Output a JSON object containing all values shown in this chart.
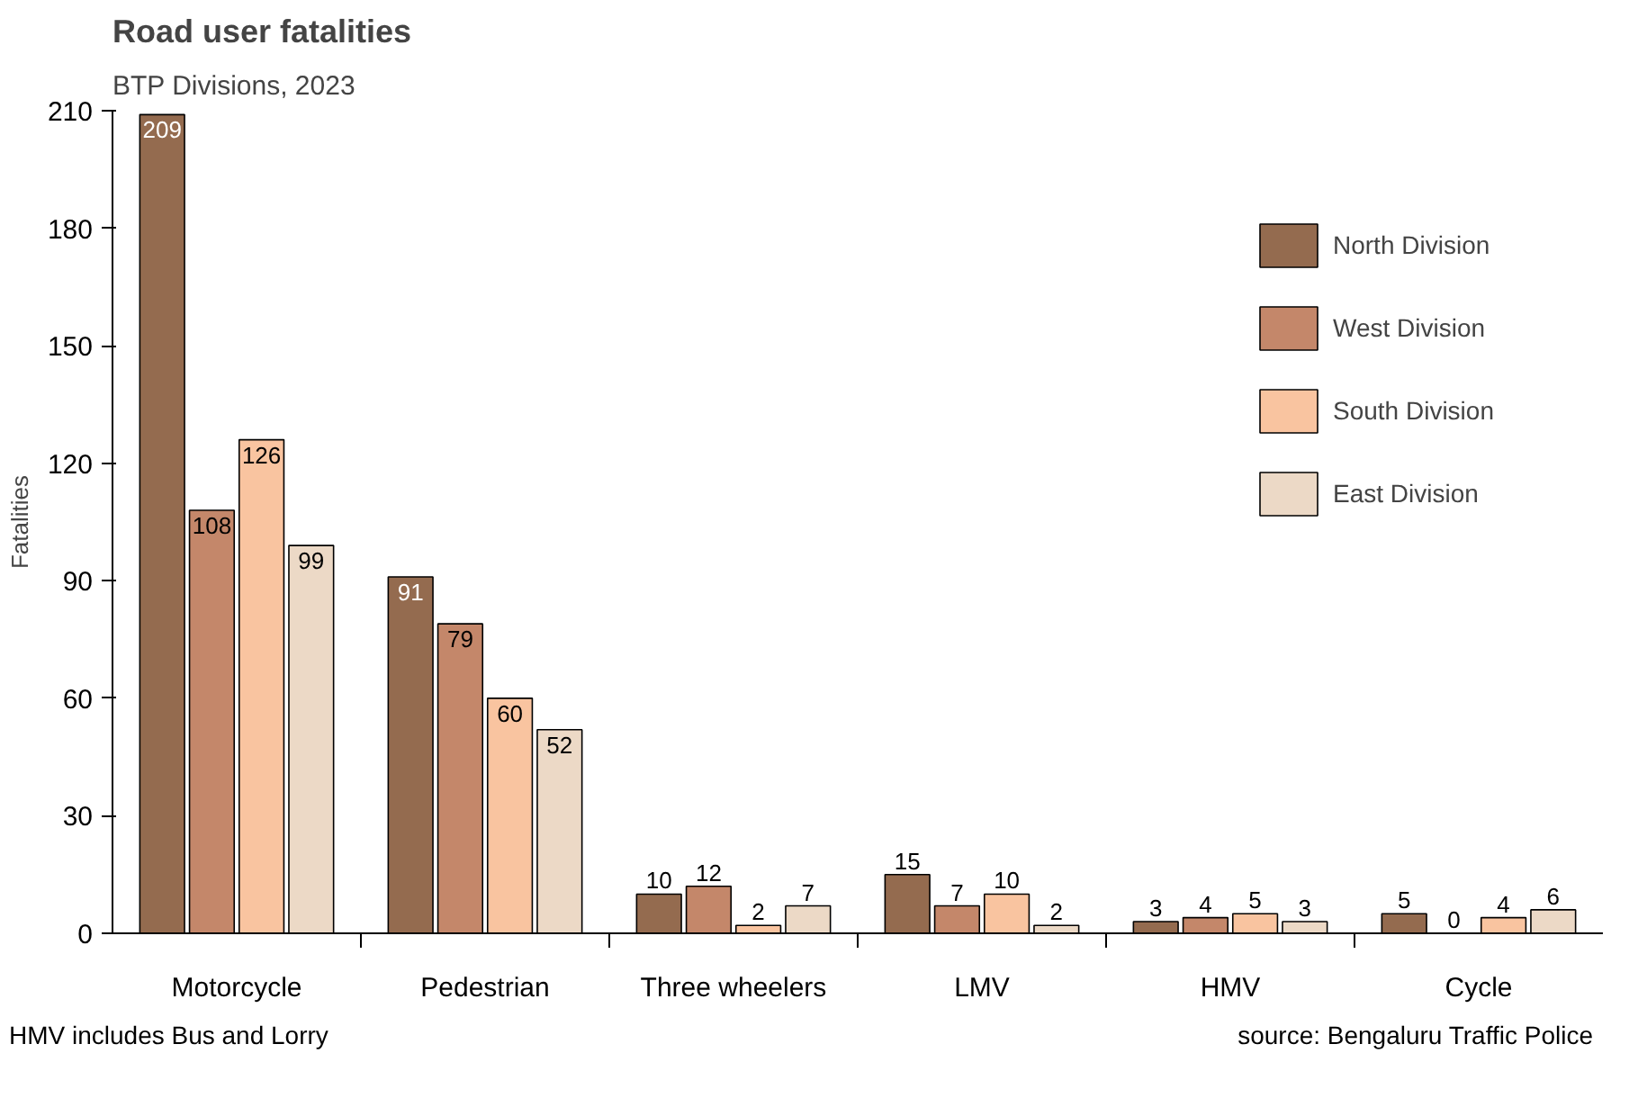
{
  "chart_data": {
    "type": "bar",
    "title": "Road user fatalities",
    "subtitle": "BTP Divisions, 2023",
    "ylabel": "Fatalities",
    "categories": [
      "Motorcycle",
      "Pedestrian",
      "Three wheelers",
      "LMV",
      "HMV",
      "Cycle"
    ],
    "series": [
      {
        "name": "North Division",
        "color": "#946b4f",
        "values": [
          209,
          91,
          10,
          15,
          3,
          5
        ]
      },
      {
        "name": "West Division",
        "color": "#c4876a",
        "values": [
          108,
          79,
          12,
          7,
          4,
          0
        ]
      },
      {
        "name": "South Division",
        "color": "#f9c4a0",
        "values": [
          126,
          60,
          2,
          10,
          5,
          4
        ]
      },
      {
        "name": "East Division",
        "color": "#ecd9c6",
        "values": [
          99,
          52,
          7,
          2,
          3,
          6
        ]
      }
    ],
    "ylim": [
      0,
      210
    ],
    "yticks": [
      0,
      30,
      60,
      90,
      120,
      150,
      180,
      210
    ],
    "grid": false,
    "legend": "top right",
    "data_labels": true,
    "annotations": [
      "HMV includes Bus and Lorry",
      "source: Bengaluru Traffic Police"
    ]
  }
}
